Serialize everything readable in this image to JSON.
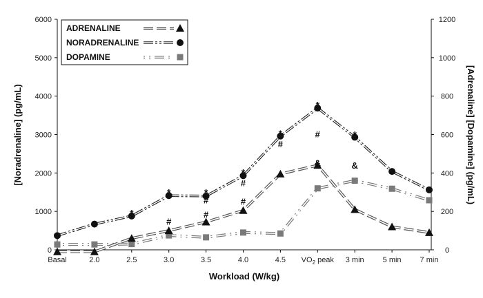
{
  "chart_data": {
    "type": "line",
    "xlabel": "Workload (W/kg)",
    "ylabel_left": "[Noradrenaline] (pg/mL)",
    "ylabel_right": "[Adrenaline] [Dopamine] (pg/mL)",
    "categories": [
      "Basal",
      "2.0",
      "2.5",
      "3.0",
      "3.5",
      "4.0",
      "4.5",
      "VO2 peak",
      "3 min",
      "5 min",
      "7 min"
    ],
    "ylim_left": [
      0,
      6000
    ],
    "yticks_left": [
      "0",
      "1000",
      "2000",
      "3000",
      "4000",
      "5000",
      "6000"
    ],
    "ylim_right": [
      0,
      1200
    ],
    "yticks_right": [
      "0",
      "200",
      "400",
      "600",
      "800",
      "1000",
      "1200"
    ],
    "grid": false,
    "legend_position": "top-left",
    "series": [
      {
        "name": "ADRENALINE",
        "axis": "right",
        "marker": "triangle",
        "color": "#111111",
        "values": [
          -10,
          -10,
          60,
          100,
          145,
          205,
          395,
          440,
          210,
          120,
          90
        ]
      },
      {
        "name": "NORADRENALINE",
        "axis": "left",
        "marker": "circle",
        "color": "#111111",
        "values": [
          370,
          670,
          880,
          1410,
          1400,
          1930,
          2960,
          3690,
          2930,
          2040,
          1560
        ]
      },
      {
        "name": "DOPAMINE",
        "axis": "right",
        "marker": "square",
        "color": "#7a7a7a",
        "values": [
          28,
          28,
          30,
          75,
          65,
          90,
          85,
          320,
          360,
          318,
          258
        ]
      }
    ],
    "annotations": [
      {
        "category": "2.5",
        "text": "*",
        "y_left": 1010
      },
      {
        "category": "3.0",
        "text": "*",
        "y_left": 1545
      },
      {
        "category": "3.0",
        "text": "#",
        "y_left": 740
      },
      {
        "category": "3.5",
        "text": "*",
        "y_left": 1545
      },
      {
        "category": "3.5",
        "text": "#",
        "y_left": 1300
      },
      {
        "category": "3.5",
        "text": "#",
        "y_left": 920
      },
      {
        "category": "4.0",
        "text": "*",
        "y_left": 2070
      },
      {
        "category": "4.0",
        "text": "#",
        "y_left": 1750
      },
      {
        "category": "4.0",
        "text": "#",
        "y_left": 1260
      },
      {
        "category": "4.5",
        "text": "*",
        "y_left": 3080
      },
      {
        "category": "4.5",
        "text": "#",
        "y_left": 2760
      },
      {
        "category": "VO2 peak",
        "text": "*",
        "y_left": 3820
      },
      {
        "category": "VO2 peak",
        "text": "#",
        "y_left": 3020
      },
      {
        "category": "VO2 peak",
        "text": "&",
        "y_left": 2270
      },
      {
        "category": "3 min",
        "text": "*",
        "y_left": 3050
      },
      {
        "category": "3 min",
        "text": "&",
        "y_left": 2200
      }
    ]
  }
}
